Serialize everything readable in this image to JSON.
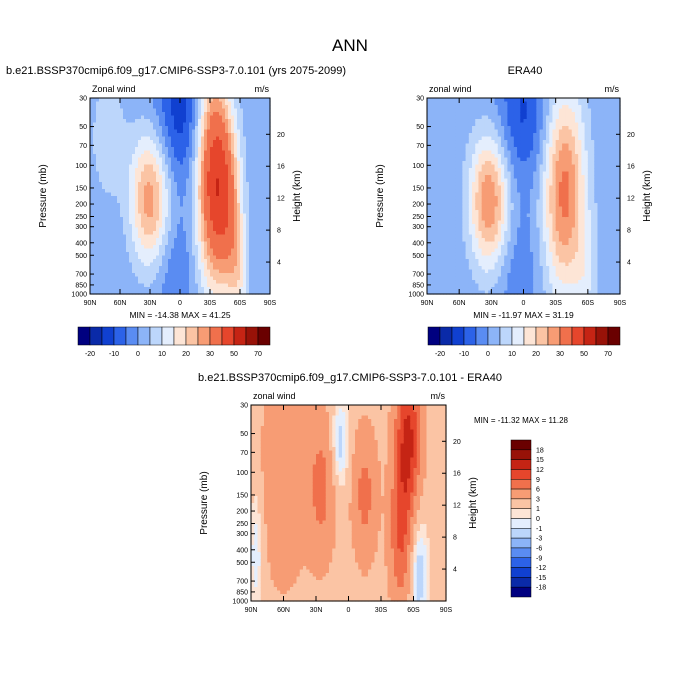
{
  "figure": {
    "title": "ANN"
  },
  "chart_data": [
    {
      "type": "heatmap",
      "title": "b.e21.BSSP370cmip6.f09_g17.CMIP6-SSP3-7.0.101 (yrs 2075-2099)",
      "left_label": "Zonal wind",
      "right_label": "m/s",
      "xlabel": "",
      "ylabel": "Pressure (mb)",
      "y2label": "Height (km)",
      "x_ticks": [
        "90N",
        "60N",
        "30N",
        "0",
        "30S",
        "60S",
        "90S"
      ],
      "xlim": [
        90,
        -90
      ],
      "y_ticks": [
        30,
        50,
        70,
        100,
        150,
        200,
        250,
        300,
        400,
        500,
        700,
        850,
        1000
      ],
      "y_scale": "log",
      "ylim": [
        1000,
        30
      ],
      "y2_ticks": [
        4,
        8,
        12,
        16,
        20
      ],
      "stats": "MIN = -14.38   MAX =  41.25",
      "min": -14.38,
      "max": 41.25,
      "jets": [
        {
          "lat": 30,
          "p": 180,
          "value": 27,
          "sx": 14,
          "sp": 0.85
        },
        {
          "lat": -33,
          "p": 120,
          "value": 41,
          "sx": 12,
          "sp": 1.35
        },
        {
          "lat": -48,
          "p": 200,
          "value": 22,
          "sx": 10,
          "sp": 1.05
        },
        {
          "lat": -58,
          "p": 700,
          "value": 12,
          "sx": 7,
          "sp": 0.7
        },
        {
          "lat": 0,
          "p": 40,
          "value": -14,
          "sx": 18,
          "sp": 0.9
        },
        {
          "lat": 5,
          "p": 700,
          "value": -6,
          "sx": 14,
          "sp": 0.8
        },
        {
          "lat": 72,
          "p": 60,
          "value": 8,
          "sx": 12,
          "sp": 0.8
        }
      ],
      "background": 1,
      "colorbar": {
        "labels": [
          "-20",
          "-10",
          "0",
          "10",
          "20",
          "30",
          "50",
          "70"
        ],
        "levels": [
          -20,
          -15,
          -10,
          -5,
          0,
          5,
          10,
          15,
          20,
          25,
          30,
          40,
          50,
          60,
          70
        ],
        "colors": [
          "#000080",
          "#0a2aa8",
          "#1040d0",
          "#2c62e8",
          "#5a8cf2",
          "#8cb4f8",
          "#bcd6fb",
          "#e4eefd",
          "#fde5d6",
          "#fbc4a4",
          "#f79c74",
          "#f0704c",
          "#e6462c",
          "#c52414",
          "#981208",
          "#6a0000"
        ]
      }
    },
    {
      "type": "heatmap",
      "title": "ERA40",
      "left_label": "zonal wind",
      "right_label": "m/s",
      "xlabel": "",
      "ylabel": "Pressure (mb)",
      "y2label": "Height (km)",
      "x_ticks": [
        "90N",
        "60N",
        "30N",
        "0",
        "30S",
        "60S",
        "90S"
      ],
      "xlim": [
        90,
        -90
      ],
      "y_ticks": [
        30,
        50,
        70,
        100,
        150,
        200,
        250,
        300,
        400,
        500,
        700,
        850,
        1000
      ],
      "y_scale": "log",
      "ylim": [
        1000,
        30
      ],
      "y2_ticks": [
        4,
        8,
        12,
        16,
        20
      ],
      "stats": "MIN = -11.97   MAX =  31.19",
      "min": -11.97,
      "max": 31.19,
      "jets": [
        {
          "lat": 32,
          "p": 190,
          "value": 29,
          "sx": 13,
          "sp": 0.85
        },
        {
          "lat": -38,
          "p": 160,
          "value": 31,
          "sx": 14,
          "sp": 1.3
        },
        {
          "lat": 0,
          "p": 40,
          "value": -12,
          "sx": 18,
          "sp": 0.9
        },
        {
          "lat": 5,
          "p": 700,
          "value": -5,
          "sx": 14,
          "sp": 0.8
        },
        {
          "lat": -58,
          "p": 700,
          "value": 7,
          "sx": 8,
          "sp": 0.7
        }
      ],
      "background": 1,
      "colorbar": {
        "labels": [
          "-20",
          "-10",
          "0",
          "10",
          "20",
          "30",
          "50",
          "70"
        ],
        "levels": [
          -20,
          -15,
          -10,
          -5,
          0,
          5,
          10,
          15,
          20,
          25,
          30,
          40,
          50,
          60,
          70
        ],
        "colors": [
          "#000080",
          "#0a2aa8",
          "#1040d0",
          "#2c62e8",
          "#5a8cf2",
          "#8cb4f8",
          "#bcd6fb",
          "#e4eefd",
          "#fde5d6",
          "#fbc4a4",
          "#f79c74",
          "#f0704c",
          "#e6462c",
          "#c52414",
          "#981208",
          "#6a0000"
        ]
      }
    },
    {
      "type": "heatmap",
      "title": "b.e21.BSSP370cmip6.f09_g17.CMIP6-SSP3-7.0.101 - ERA40",
      "left_label": "zonal wind",
      "right_label": "m/s",
      "xlabel": "",
      "ylabel": "Pressure (mb)",
      "y2label": "Height (km)",
      "x_ticks": [
        "90N",
        "60N",
        "30N",
        "0",
        "30S",
        "60S",
        "90S"
      ],
      "xlim": [
        90,
        -90
      ],
      "y_ticks": [
        30,
        50,
        70,
        100,
        150,
        200,
        250,
        300,
        400,
        500,
        700,
        850,
        1000
      ],
      "y_scale": "log",
      "ylim": [
        1000,
        30
      ],
      "y2_ticks": [
        4,
        8,
        12,
        16,
        20
      ],
      "stats": "MIN = -11.32   MAX =  11.28",
      "min": -11.32,
      "max": 11.28,
      "jets": [
        {
          "lat": -55,
          "p": 55,
          "value": 11,
          "sx": 8,
          "sp": 0.9
        },
        {
          "lat": -48,
          "p": 300,
          "value": 7,
          "sx": 7,
          "sp": 0.9
        },
        {
          "lat": -15,
          "p": 150,
          "value": 5,
          "sx": 8,
          "sp": 0.8
        },
        {
          "lat": 25,
          "p": 130,
          "value": 5,
          "sx": 9,
          "sp": 0.9
        },
        {
          "lat": 60,
          "p": 120,
          "value": 4,
          "sx": 14,
          "sp": 1.2
        },
        {
          "lat": 8,
          "p": 60,
          "value": -4,
          "sx": 6,
          "sp": 0.6
        },
        {
          "lat": -65,
          "p": 600,
          "value": -4,
          "sx": 6,
          "sp": 0.8
        },
        {
          "lat": 85,
          "p": 400,
          "value": -3,
          "sx": 5,
          "sp": 0.9
        }
      ],
      "background": 2,
      "colorbar": {
        "labels": [
          "18",
          "15",
          "12",
          "9",
          "6",
          "3",
          "1",
          "0",
          "-1",
          "-3",
          "-6",
          "-9",
          "-12",
          "-15",
          "-18"
        ],
        "levels": [
          -18,
          -15,
          -12,
          -9,
          -6,
          -3,
          -1,
          0,
          1,
          3,
          6,
          9,
          12,
          15,
          18
        ],
        "colors": [
          "#000080",
          "#0a2aa8",
          "#1040d0",
          "#2c62e8",
          "#5a8cf2",
          "#8cb4f8",
          "#bcd6fb",
          "#e4eefd",
          "#fde5d6",
          "#fbc4a4",
          "#f79c74",
          "#f0704c",
          "#e6462c",
          "#c52414",
          "#981208",
          "#6a0000"
        ]
      }
    }
  ]
}
